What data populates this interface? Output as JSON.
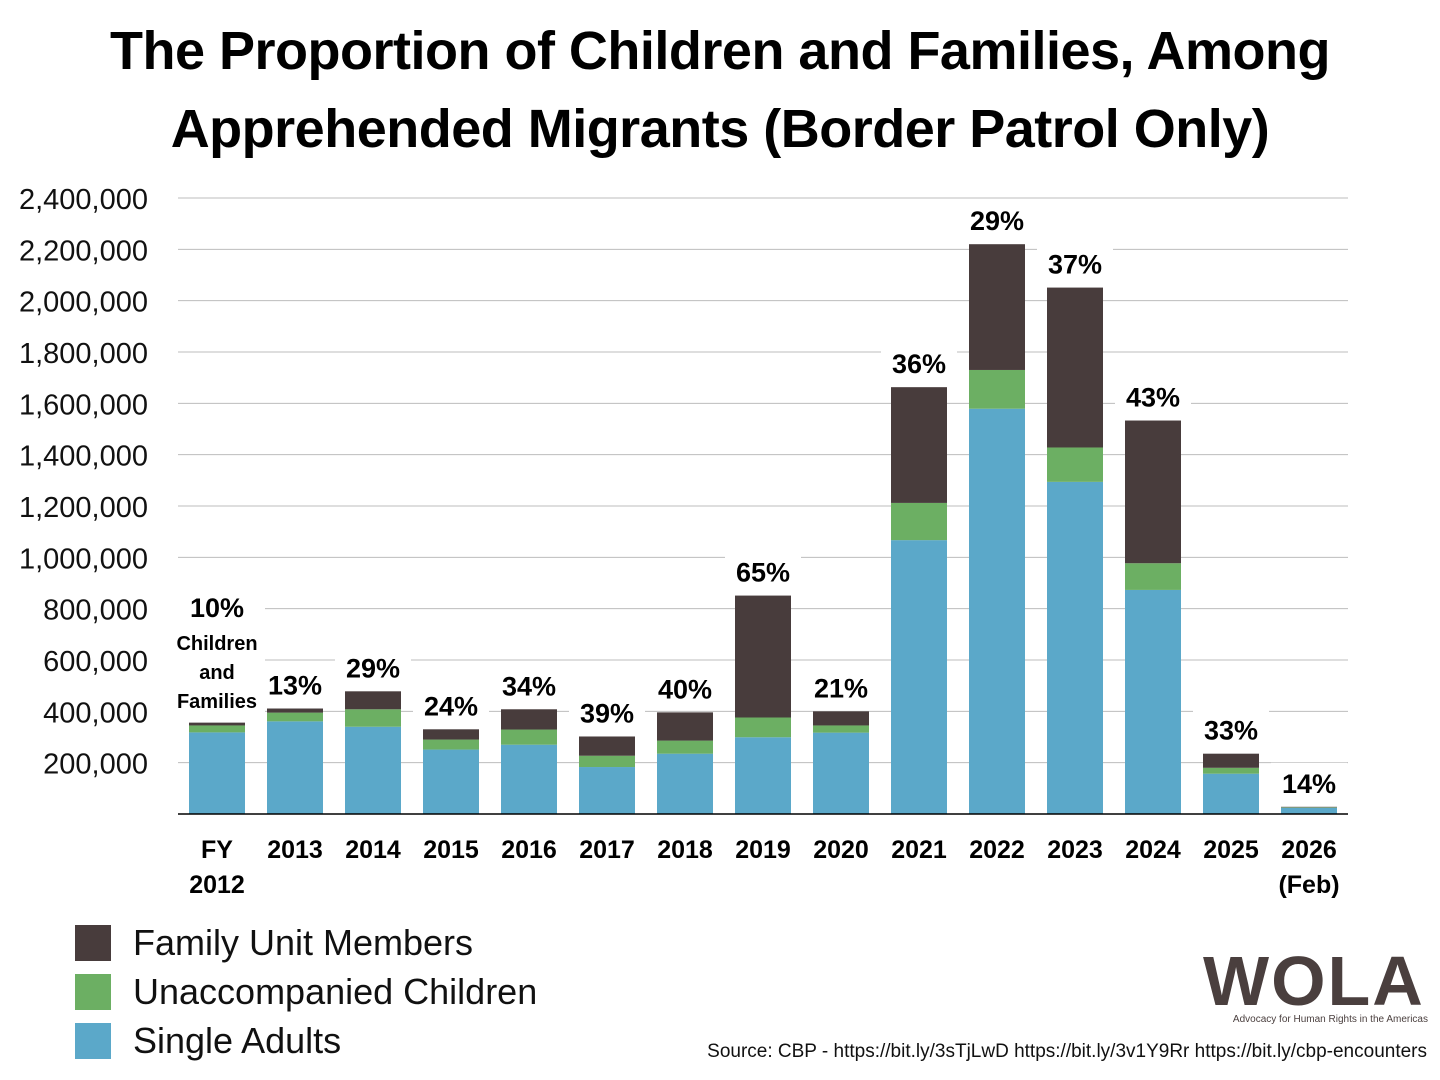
{
  "chart_data": {
    "type": "bar",
    "stacked": true,
    "title": "The Proportion of Children and Families, Among Apprehended Migrants (Border Patrol Only)",
    "title_lines": [
      "The Proportion of Children and Families, Among",
      "Apprehended Migrants (Border Patrol Only)"
    ],
    "categories": [
      "FY 2012",
      "2013",
      "2014",
      "2015",
      "2016",
      "2017",
      "2018",
      "2019",
      "2020",
      "2021",
      "2022",
      "2023",
      "2024",
      "2025",
      "2026 (Feb)"
    ],
    "category_lines": [
      [
        "FY",
        "2012"
      ],
      [
        "2013"
      ],
      [
        "2014"
      ],
      [
        "2015"
      ],
      [
        "2016"
      ],
      [
        "2017"
      ],
      [
        "2018"
      ],
      [
        "2019"
      ],
      [
        "2020"
      ],
      [
        "2021"
      ],
      [
        "2022"
      ],
      [
        "2023"
      ],
      [
        "2024"
      ],
      [
        "2025"
      ],
      [
        "2026",
        "(Feb)"
      ]
    ],
    "series": [
      {
        "name": "Single Adults",
        "color": "#5ba8c9",
        "values": [
          318000,
          361000,
          340000,
          251000,
          270000,
          183000,
          235000,
          299000,
          317000,
          1067000,
          1579000,
          1294000,
          873000,
          157000,
          24000
        ]
      },
      {
        "name": "Unaccompanied Children",
        "color": "#6caf63",
        "values": [
          27000,
          34000,
          68000,
          39000,
          59000,
          44000,
          51000,
          77000,
          28000,
          145000,
          151000,
          134000,
          104000,
          23000,
          2000
        ]
      },
      {
        "name": "Family Unit Members",
        "color": "#483c3c",
        "values": [
          11000,
          16000,
          70000,
          40000,
          79000,
          75000,
          110000,
          475000,
          55000,
          451000,
          490000,
          623000,
          556000,
          55000,
          2000
        ]
      }
    ],
    "data_labels": [
      "10%",
      "13%",
      "29%",
      "24%",
      "34%",
      "39%",
      "40%",
      "65%",
      "21%",
      "36%",
      "29%",
      "37%",
      "43%",
      "33%",
      "14%"
    ],
    "first_label_note": [
      "Children",
      "and",
      "Families"
    ],
    "yticks": [
      200000,
      400000,
      600000,
      800000,
      1000000,
      1200000,
      1400000,
      1600000,
      1800000,
      2000000,
      2200000,
      2400000
    ],
    "ytick_labels": [
      "200,000",
      "400,000",
      "600,000",
      "800,000",
      "1,000,000",
      "1,200,000",
      "1,400,000",
      "1,600,000",
      "1,800,000",
      "2,000,000",
      "2,200,000",
      "2,400,000"
    ],
    "ylim": [
      0,
      2400000
    ],
    "grid": true,
    "legend_position": "bottom-left",
    "legend_order": [
      "Family Unit Members",
      "Unaccompanied Children",
      "Single Adults"
    ]
  },
  "source": "Source: CBP - https://bit.ly/3sTjLwD https://bit.ly/3v1Y9Rr https://bit.ly/cbp-encounters",
  "logo": {
    "word": "WOLA",
    "tagline": "Advocacy for Human Rights in the Americas"
  }
}
